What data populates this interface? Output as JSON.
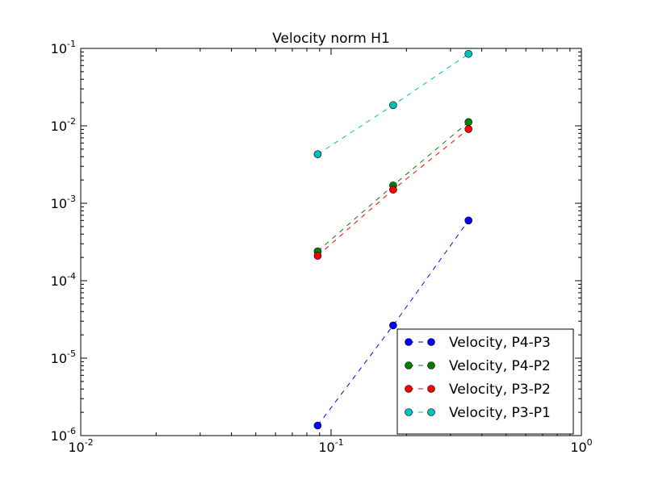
{
  "chart_data": {
    "type": "line",
    "title": "Velocity norm H1",
    "xscale": "log",
    "yscale": "log",
    "xlim": [
      0.01,
      1
    ],
    "ylim": [
      1e-06,
      0.1
    ],
    "x_ticks": [
      {
        "base": "10",
        "exp": "-2",
        "value": 0.01
      },
      {
        "base": "10",
        "exp": "-1",
        "value": 0.1
      },
      {
        "base": "10",
        "exp": "0",
        "value": 1
      }
    ],
    "y_ticks": [
      {
        "base": "10",
        "exp": "-6",
        "value": 1e-06
      },
      {
        "base": "10",
        "exp": "-5",
        "value": 1e-05
      },
      {
        "base": "10",
        "exp": "-4",
        "value": 0.0001
      },
      {
        "base": "10",
        "exp": "-3",
        "value": 0.001
      },
      {
        "base": "10",
        "exp": "-2",
        "value": 0.01
      },
      {
        "base": "10",
        "exp": "-1",
        "value": 0.1
      }
    ],
    "grid": false,
    "legend_position": "lower-right",
    "series": [
      {
        "name": "Velocity, P4-P3",
        "color": "#0000ff",
        "x": [
          0.0884,
          0.177,
          0.354
        ],
        "y": [
          1.35e-06,
          2.65e-05,
          0.0006
        ]
      },
      {
        "name": "Velocity, P4-P2",
        "color": "#008000",
        "x": [
          0.0884,
          0.177,
          0.354
        ],
        "y": [
          0.00024,
          0.0017,
          0.0112
        ]
      },
      {
        "name": "Velocity, P3-P2",
        "color": "#ff0000",
        "x": [
          0.0884,
          0.177,
          0.354
        ],
        "y": [
          0.00021,
          0.0015,
          0.0091
        ]
      },
      {
        "name": "Velocity, P3-P1",
        "color": "#00bfbf",
        "x": [
          0.0884,
          0.177,
          0.354
        ],
        "y": [
          0.0043,
          0.0185,
          0.085
        ]
      }
    ]
  }
}
